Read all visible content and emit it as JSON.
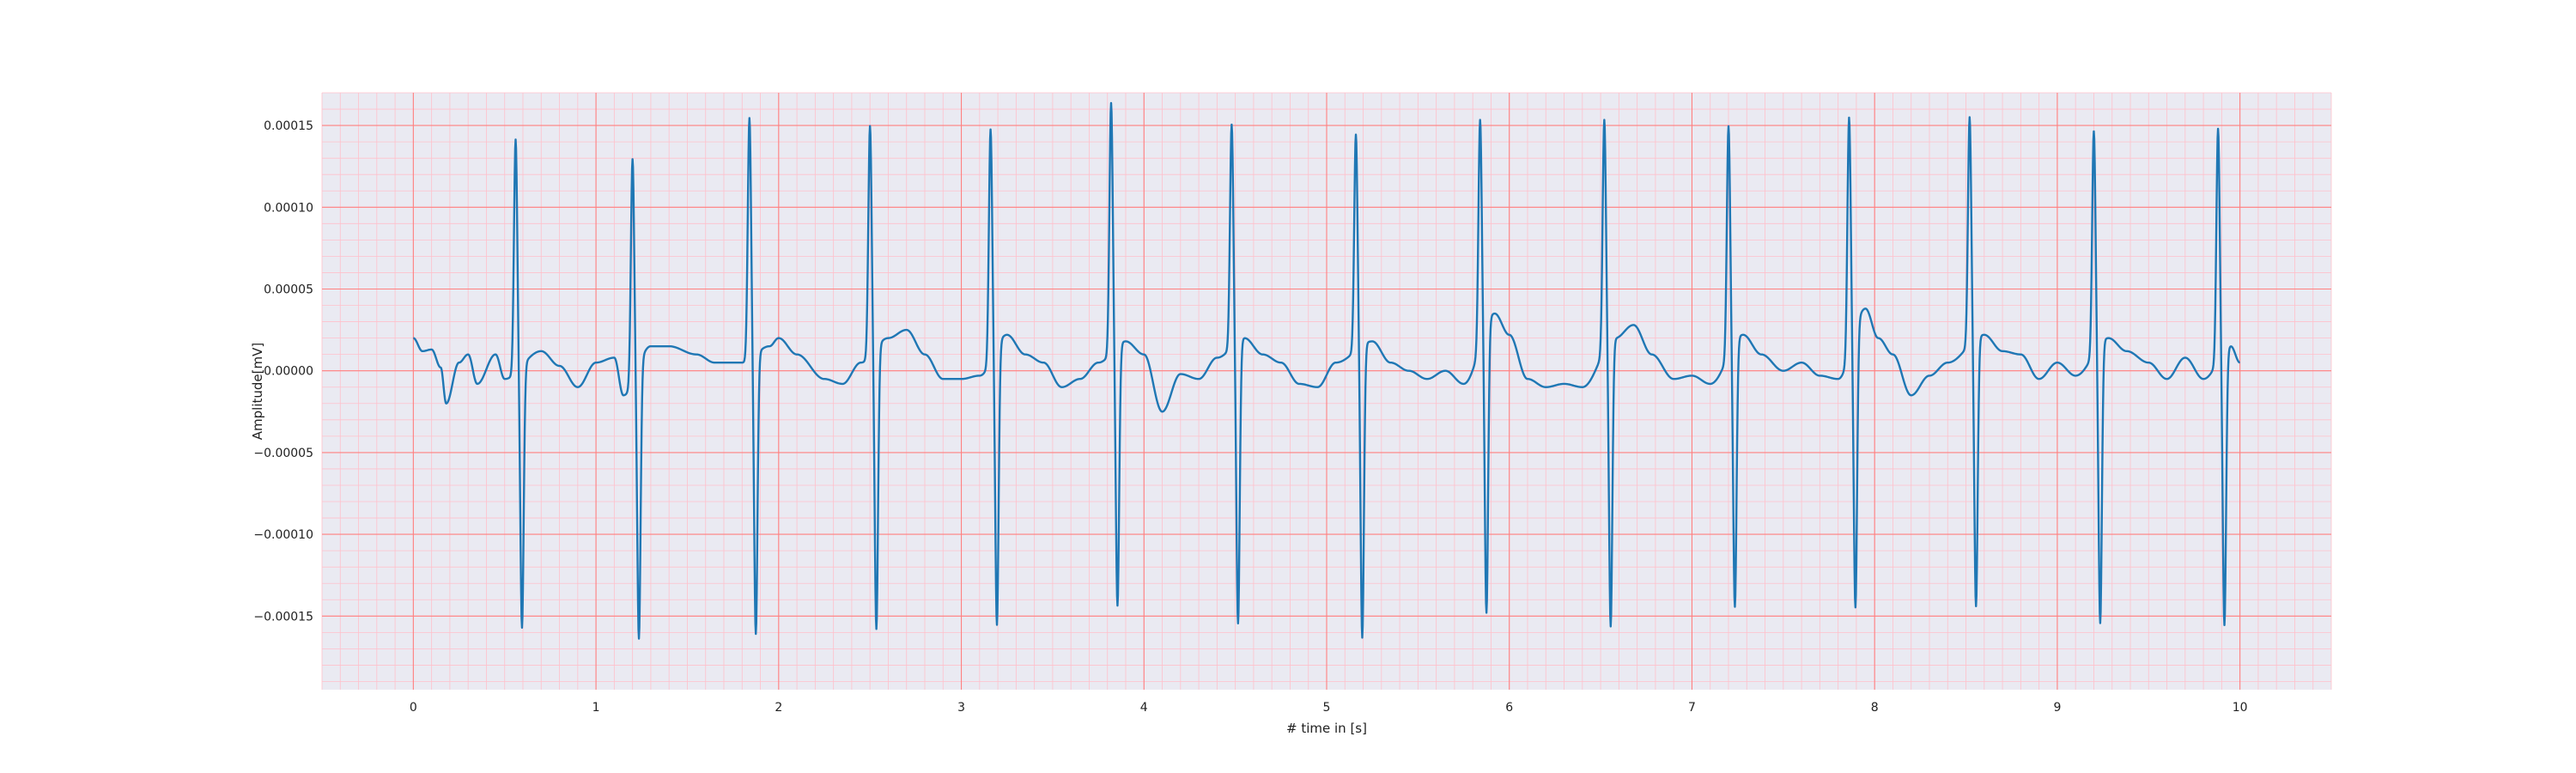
{
  "chart_data": {
    "type": "line",
    "title": "",
    "xlabel": "# time in [s]",
    "ylabel": "Amplitude[mV]",
    "xlim": [
      -0.5,
      10.5
    ],
    "ylim": [
      -0.000195,
      0.00017
    ],
    "x_ticks": [
      0,
      1,
      2,
      3,
      4,
      5,
      6,
      7,
      8,
      9,
      10
    ],
    "x_tick_labels": [
      "0",
      "1",
      "2",
      "3",
      "4",
      "5",
      "6",
      "7",
      "8",
      "9",
      "10"
    ],
    "y_ticks": [
      0.00015,
      0.0001,
      5e-05,
      0.0,
      -5e-05,
      -0.0001,
      -0.00015
    ],
    "y_tick_labels": [
      "0.00015",
      "0.00010",
      "0.00005",
      "0.00000",
      "−0.00005",
      "−0.00010",
      "−0.00015"
    ],
    "grid": true,
    "grid_major_color": "#ff8080",
    "grid_minor_color": "#ffc0cb",
    "background_color": "#eaeaf2",
    "series": [
      {
        "color": "#1f77b4",
        "x_start": 0,
        "x_end": 10,
        "baseline_points": [
          [
            0.0,
            2e-05
          ],
          [
            0.05,
            1.2e-05
          ],
          [
            0.1,
            1.3e-05
          ],
          [
            0.15,
            2e-06
          ],
          [
            0.18,
            -2e-05
          ],
          [
            0.25,
            5e-06
          ],
          [
            0.3,
            1e-05
          ],
          [
            0.35,
            -8e-06
          ],
          [
            0.45,
            1e-05
          ],
          [
            0.5,
            -5e-06
          ],
          [
            0.7,
            1.2e-05
          ],
          [
            0.8,
            3e-06
          ],
          [
            0.9,
            -1e-05
          ],
          [
            1.0,
            5e-06
          ],
          [
            1.1,
            8e-06
          ],
          [
            1.15,
            -1.5e-05
          ],
          [
            1.3,
            1.5e-05
          ],
          [
            1.4,
            1.5e-05
          ],
          [
            1.55,
            1e-05
          ],
          [
            1.65,
            5e-06
          ],
          [
            1.8,
            5e-06
          ],
          [
            1.95,
            1.5e-05
          ],
          [
            2.0,
            2e-05
          ],
          [
            2.1,
            1e-05
          ],
          [
            2.25,
            -5e-06
          ],
          [
            2.35,
            -8e-06
          ],
          [
            2.45,
            5e-06
          ],
          [
            2.6,
            2e-05
          ],
          [
            2.7,
            2.5e-05
          ],
          [
            2.8,
            1e-05
          ],
          [
            2.9,
            -5e-06
          ],
          [
            3.0,
            -5e-06
          ],
          [
            3.1,
            -3e-06
          ],
          [
            3.25,
            2.2e-05
          ],
          [
            3.35,
            1e-05
          ],
          [
            3.45,
            5e-06
          ],
          [
            3.55,
            -1e-05
          ],
          [
            3.65,
            -5e-06
          ],
          [
            3.75,
            5e-06
          ],
          [
            3.9,
            1.8e-05
          ],
          [
            4.0,
            1e-05
          ],
          [
            4.1,
            -2.5e-05
          ],
          [
            4.2,
            -2e-06
          ],
          [
            4.3,
            -5e-06
          ],
          [
            4.4,
            8e-06
          ],
          [
            4.55,
            2e-05
          ],
          [
            4.65,
            1e-05
          ],
          [
            4.75,
            5e-06
          ],
          [
            4.85,
            -8e-06
          ],
          [
            4.95,
            -1e-05
          ],
          [
            5.05,
            5e-06
          ],
          [
            5.25,
            1.8e-05
          ],
          [
            5.35,
            5e-06
          ],
          [
            5.45,
            0.0
          ],
          [
            5.55,
            -5e-06
          ],
          [
            5.65,
            0.0
          ],
          [
            5.75,
            -8e-06
          ],
          [
            5.92,
            3.5e-05
          ],
          [
            6.0,
            2.2e-05
          ],
          [
            6.1,
            -5e-06
          ],
          [
            6.2,
            -1e-05
          ],
          [
            6.3,
            -8e-06
          ],
          [
            6.4,
            -1e-05
          ],
          [
            6.58,
            2e-05
          ],
          [
            6.68,
            2.8e-05
          ],
          [
            6.78,
            1e-05
          ],
          [
            6.9,
            -5e-06
          ],
          [
            7.0,
            -3e-06
          ],
          [
            7.1,
            -8e-06
          ],
          [
            7.28,
            2.2e-05
          ],
          [
            7.38,
            1e-05
          ],
          [
            7.5,
            0.0
          ],
          [
            7.6,
            5e-06
          ],
          [
            7.7,
            -3e-06
          ],
          [
            7.8,
            -5e-06
          ],
          [
            7.95,
            3.8e-05
          ],
          [
            8.02,
            2e-05
          ],
          [
            8.1,
            1e-05
          ],
          [
            8.2,
            -1.5e-05
          ],
          [
            8.3,
            -3e-06
          ],
          [
            8.4,
            5e-06
          ],
          [
            8.6,
            2.2e-05
          ],
          [
            8.7,
            1.2e-05
          ],
          [
            8.8,
            1e-05
          ],
          [
            8.9,
            -5e-06
          ],
          [
            9.0,
            5e-06
          ],
          [
            9.1,
            -3e-06
          ],
          [
            9.28,
            2e-05
          ],
          [
            9.38,
            1.2e-05
          ],
          [
            9.5,
            5e-06
          ],
          [
            9.6,
            -5e-06
          ],
          [
            9.7,
            8e-06
          ],
          [
            9.8,
            -5e-06
          ],
          [
            9.95,
            1.5e-05
          ],
          [
            10.0,
            5e-06
          ]
        ],
        "beats": [
          {
            "t": 0.56,
            "peak": 0.000143,
            "trough": -0.00016
          },
          {
            "t": 1.2,
            "peak": 0.000137,
            "trough": -0.000167
          },
          {
            "t": 1.84,
            "peak": 0.000148,
            "trough": -0.000171
          },
          {
            "t": 2.5,
            "peak": 0.000141,
            "trough": -0.000172
          },
          {
            "t": 3.16,
            "peak": 0.000142,
            "trough": -0.00017
          },
          {
            "t": 3.82,
            "peak": 0.000153,
            "trough": -0.000159
          },
          {
            "t": 4.48,
            "peak": 0.000136,
            "trough": -0.000173
          },
          {
            "t": 5.16,
            "peak": 0.000132,
            "trough": -0.000179
          },
          {
            "t": 5.84,
            "peak": 0.000138,
            "trough": -0.000176
          },
          {
            "t": 6.52,
            "peak": 0.000141,
            "trough": -0.000175
          },
          {
            "t": 7.2,
            "peak": 0.00014,
            "trough": -0.000162
          },
          {
            "t": 7.86,
            "peak": 0.000145,
            "trough": -0.00017
          },
          {
            "t": 8.52,
            "peak": 0.000139,
            "trough": -0.000164
          },
          {
            "t": 9.2,
            "peak": 0.000136,
            "trough": -0.000171
          },
          {
            "t": 9.88,
            "peak": 0.000142,
            "trough": -0.000168
          }
        ]
      }
    ]
  }
}
